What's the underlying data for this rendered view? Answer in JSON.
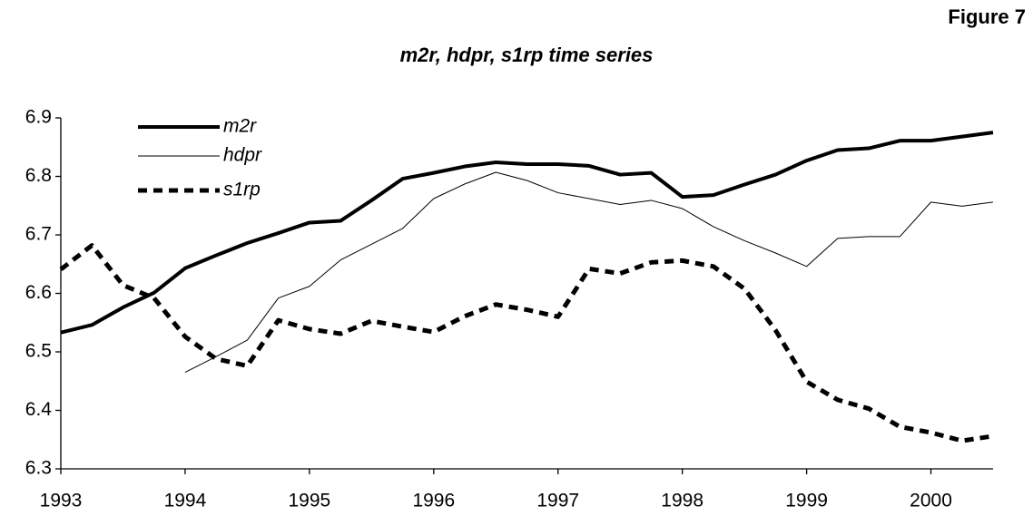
{
  "chart_data": {
    "type": "line",
    "figure_label": "Figure 7",
    "title": "m2r, hdpr, s1rp time series",
    "x": [
      1993,
      1993.25,
      1993.5,
      1993.75,
      1994,
      1994.25,
      1994.5,
      1994.75,
      1995,
      1995.25,
      1995.5,
      1995.75,
      1996,
      1996.25,
      1996.5,
      1996.75,
      1997,
      1997.25,
      1997.5,
      1997.75,
      1998,
      1998.25,
      1998.5,
      1998.75,
      1999,
      1999.25,
      1999.5,
      1999.75,
      2000,
      2000.25,
      2000.5
    ],
    "series": [
      {
        "name": "m2r",
        "color": "#000000",
        "width": 4,
        "dash": "none",
        "values": [
          6.533,
          6.546,
          6.576,
          6.601,
          6.643,
          6.665,
          6.686,
          6.703,
          6.721,
          6.724,
          6.759,
          6.796,
          6.806,
          6.817,
          6.824,
          6.821,
          6.821,
          6.818,
          6.803,
          6.806,
          6.765,
          6.768,
          6.786,
          6.803,
          6.827,
          6.845,
          6.848,
          6.861,
          6.861,
          6.868,
          6.875
        ]
      },
      {
        "name": "hdpr",
        "color": "#000000",
        "width": 1,
        "dash": "none",
        "values": [
          null,
          null,
          null,
          null,
          6.465,
          6.492,
          6.52,
          6.592,
          6.612,
          6.657,
          6.684,
          6.711,
          6.762,
          6.787,
          6.807,
          6.793,
          6.772,
          6.762,
          6.752,
          6.759,
          6.745,
          6.714,
          6.69,
          6.669,
          6.646,
          6.694,
          6.697,
          6.697,
          6.756,
          6.749,
          6.756
        ]
      },
      {
        "name": "s1rp",
        "color": "#000000",
        "width": 5,
        "dash": "10,7",
        "values": [
          6.641,
          6.682,
          6.614,
          6.592,
          6.526,
          6.488,
          6.476,
          6.554,
          6.539,
          6.531,
          6.553,
          6.543,
          6.534,
          6.561,
          6.581,
          6.572,
          6.56,
          6.642,
          6.634,
          6.653,
          6.656,
          6.646,
          6.608,
          6.537,
          6.449,
          6.418,
          6.403,
          6.372,
          6.362,
          6.348,
          6.356
        ]
      }
    ],
    "xlim": [
      1993,
      2000.5
    ],
    "xticks": [
      1993,
      1994,
      1995,
      1996,
      1997,
      1998,
      1999,
      2000
    ],
    "ylim": [
      6.3,
      6.9
    ],
    "yticks": [
      6.3,
      6.4,
      6.5,
      6.6,
      6.7,
      6.8,
      6.9
    ],
    "grid": false,
    "legend": "top-left"
  }
}
